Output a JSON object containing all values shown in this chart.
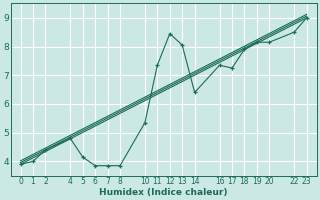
{
  "xlabel": "Humidex (Indice chaleur)",
  "background_color": "#cce8e5",
  "grid_color": "#ffffff",
  "line_color": "#1a6b5a",
  "xlim": [
    -0.8,
    23.8
  ],
  "ylim": [
    3.5,
    9.5
  ],
  "xticks": [
    0,
    1,
    2,
    4,
    5,
    6,
    7,
    8,
    10,
    11,
    12,
    13,
    14,
    16,
    17,
    18,
    19,
    20,
    22,
    23
  ],
  "yticks": [
    4,
    5,
    6,
    7,
    8,
    9
  ],
  "scatter_x": [
    0,
    1,
    2,
    4,
    5,
    6,
    7,
    8,
    10,
    11,
    12,
    13,
    14,
    16,
    17,
    18,
    19,
    20,
    22,
    23
  ],
  "scatter_y": [
    3.9,
    4.0,
    4.4,
    4.8,
    4.15,
    3.85,
    3.85,
    3.85,
    5.35,
    7.35,
    8.45,
    8.05,
    6.4,
    7.35,
    7.25,
    7.9,
    8.15,
    8.15,
    8.5,
    9.0
  ],
  "trend_x": [
    0,
    23
  ],
  "trend_y": [
    3.9,
    9.0
  ],
  "trend_offsets": [
    0.0,
    0.06,
    0.12
  ]
}
